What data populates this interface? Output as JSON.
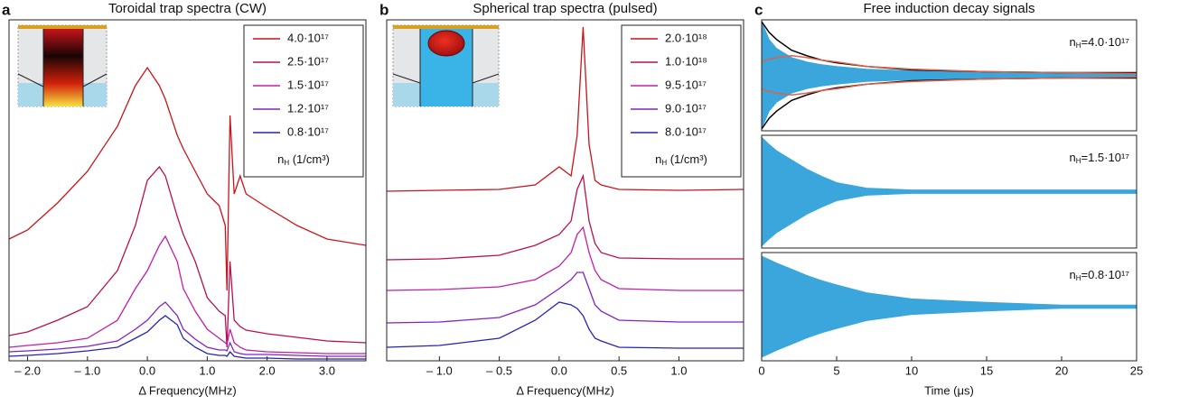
{
  "chart_data": [
    {
      "type": "line",
      "label": "a",
      "title": "Toroidal trap spectra (CW)",
      "xlabel": "Δ Frequency(MHz)",
      "xlim": [
        -2.31,
        3.65
      ],
      "ylim": [
        0,
        378
      ],
      "xticks": [
        {
          "value": -2,
          "label": "– 2.0"
        },
        {
          "value": -1,
          "label": "– 1.0"
        },
        {
          "value": 0,
          "label": "0.0"
        },
        {
          "value": 1,
          "label": "1.0"
        },
        {
          "value": 2,
          "label": "2.0"
        },
        {
          "value": 3,
          "label": "3.0"
        }
      ],
      "legend_title": {
        "text": "n",
        "sub": "H",
        "suffix": " (1/cm³)"
      },
      "x": [
        -2.31,
        -2,
        -1.5,
        -1,
        -0.5,
        -0.2,
        0,
        0.2,
        0.3,
        0.5,
        0.6,
        0.8,
        1,
        1.2,
        1.3,
        1.33,
        1.38,
        1.45,
        1.55,
        1.65,
        2,
        2.5,
        3,
        3.65
      ],
      "series": [
        {
          "name": "4.0·10¹⁷",
          "color": "#c8141b",
          "values": [
            135,
            145,
            175,
            210,
            260,
            305,
            325,
            305,
            290,
            250,
            235,
            210,
            185,
            172,
            150,
            78,
            272,
            185,
            205,
            185,
            170,
            150,
            135,
            128
          ]
        },
        {
          "name": "2.5·10¹⁷",
          "color": "#b8104e",
          "values": [
            28,
            32,
            45,
            60,
            100,
            150,
            200,
            215,
            205,
            160,
            140,
            110,
            70,
            55,
            50,
            15,
            110,
            45,
            38,
            34,
            30,
            26,
            22,
            20
          ]
        },
        {
          "name": "1.5·10¹⁷",
          "color": "#c21ea8",
          "values": [
            15,
            17,
            20,
            25,
            45,
            80,
            100,
            128,
            138,
            110,
            80,
            55,
            35,
            25,
            20,
            18,
            35,
            20,
            15,
            12,
            10,
            9,
            8,
            8
          ]
        },
        {
          "name": "1.2·10¹⁷",
          "color": "#8222c0",
          "values": [
            10,
            11,
            13,
            16,
            22,
            35,
            45,
            60,
            65,
            50,
            35,
            24,
            15,
            12,
            12,
            11,
            20,
            10,
            8,
            7,
            7,
            6,
            5,
            5
          ]
        },
        {
          "name": "0.8·10¹⁷",
          "color": "#2424b4",
          "values": [
            5,
            6,
            8,
            11,
            15,
            25,
            32,
            45,
            50,
            40,
            25,
            15,
            8,
            6,
            6,
            5,
            10,
            5,
            4,
            3,
            3,
            2,
            2,
            2
          ]
        }
      ]
    },
    {
      "type": "line",
      "label": "b",
      "title": "Spherical trap spectra (pulsed)",
      "xlabel": "Δ Frequency(MHz)",
      "xlim": [
        -1.44,
        1.54
      ],
      "ylim": [
        0,
        378
      ],
      "xticks": [
        {
          "value": -1,
          "label": "– 1.0"
        },
        {
          "value": -0.5,
          "label": "– 0.5"
        },
        {
          "value": 0,
          "label": "0.0"
        },
        {
          "value": 0.5,
          "label": "0.5"
        },
        {
          "value": 1,
          "label": "1.0"
        }
      ],
      "legend_title": {
        "text": "n",
        "sub": "H",
        "suffix": " (1/cm³)"
      },
      "x": [
        -1.44,
        -1,
        -0.5,
        -0.2,
        0,
        0.1,
        0.15,
        0.2,
        0.25,
        0.3,
        0.35,
        0.5,
        1,
        1.54
      ],
      "series": [
        {
          "name": "2.0·10¹⁸",
          "color": "#c8141b",
          "values": [
            188,
            189,
            190,
            195,
            215,
            205,
            250,
            370,
            240,
            200,
            195,
            190,
            189,
            190
          ]
        },
        {
          "name": "1.0·10¹⁸",
          "color": "#b8104e",
          "values": [
            112,
            113,
            117,
            128,
            140,
            155,
            190,
            205,
            155,
            130,
            120,
            114,
            113,
            113
          ]
        },
        {
          "name": "9.5·10¹⁷",
          "color": "#c21ea8",
          "values": [
            78,
            79,
            82,
            90,
            105,
            120,
            140,
            148,
            120,
            100,
            90,
            80,
            78,
            78
          ]
        },
        {
          "name": "9.0·10¹⁷",
          "color": "#8222c0",
          "values": [
            42,
            43,
            48,
            62,
            80,
            90,
            98,
            98,
            80,
            62,
            55,
            45,
            43,
            43
          ]
        },
        {
          "name": "8.0·10¹⁷",
          "color": "#2424b4",
          "values": [
            15,
            17,
            25,
            45,
            65,
            62,
            58,
            50,
            35,
            25,
            22,
            15,
            14,
            14
          ]
        }
      ]
    },
    {
      "type": "envelope",
      "label": "c",
      "title": "Free induction decay signals",
      "xlabel": "Time (μs)",
      "xlim": [
        0,
        25
      ],
      "xticks": [
        0,
        5,
        10,
        15,
        20,
        25
      ],
      "x": [
        0,
        0.5,
        1,
        2,
        3,
        4,
        5,
        7,
        10,
        15,
        20,
        25
      ],
      "panels": [
        {
          "ylim": [
            -62,
            62
          ],
          "annotation": {
            "text": "n",
            "sub": "H",
            "suffix": "=4.0·10¹⁷"
          },
          "series": [
            {
              "color": "#3aa6dc",
              "fill": true,
              "values": [
                60,
                40,
                30,
                20,
                15,
                12,
                10,
                7,
                5,
                4,
                3,
                3
              ]
            },
            {
              "color": "#000000",
              "fill": false,
              "values": [
                60,
                48,
                40,
                28,
                22,
                17,
                14,
                10,
                6,
                4,
                3,
                3
              ]
            },
            {
              "color": "#e0604a",
              "fill": false,
              "values": [
                15,
                18,
                20,
                22,
                20,
                17,
                15,
                10,
                7,
                4,
                3,
                2
              ]
            }
          ]
        },
        {
          "ylim": [
            -62,
            62
          ],
          "annotation": {
            "text": "n",
            "sub": "H",
            "suffix": "=1.5·10¹⁷"
          },
          "series": [
            {
              "color": "#3aa6dc",
              "fill": true,
              "values": [
                60,
                52,
                45,
                35,
                25,
                17,
                10,
                4,
                2,
                2,
                2,
                2
              ]
            }
          ]
        },
        {
          "ylim": [
            -62,
            62
          ],
          "annotation": {
            "text": "n",
            "sub": "H",
            "suffix": "=0.8·10¹⁷"
          },
          "series": [
            {
              "color": "#3aa6dc",
              "fill": true,
              "values": [
                58,
                54,
                50,
                43,
                36,
                30,
                25,
                16,
                9,
                5,
                2,
                2
              ]
            }
          ]
        }
      ]
    }
  ]
}
